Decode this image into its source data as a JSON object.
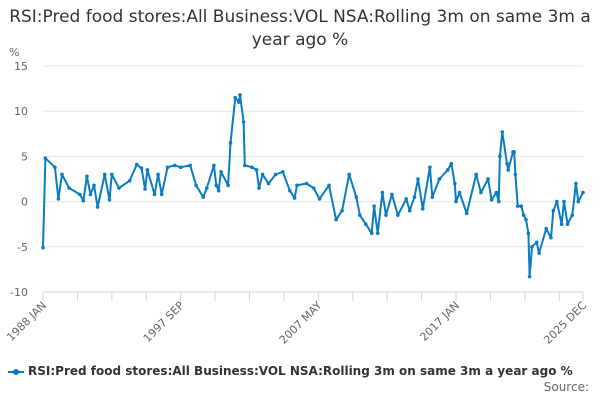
{
  "chart_data": {
    "type": "line",
    "title": "RSI:Pred food stores:All Business:VOL NSA:Rolling 3m on same 3m a year ago %",
    "ylabel": "%",
    "ylim": [
      -10,
      15
    ],
    "yticks": [
      -10,
      -5,
      0,
      5,
      10,
      15
    ],
    "xlim": [
      "1988-01",
      "2025-12"
    ],
    "xtick_labels": [
      "1988 JAN",
      "1997 SEP",
      "2007 MAY",
      "2017 JAN",
      "2025 DEC"
    ],
    "grid": true,
    "legend_position": "bottom",
    "color": "#0a7cc1",
    "series": [
      {
        "name": "RSI:Pred food stores:All Business:VOL NSA:Rolling 3m on same 3m a year ago %",
        "points": [
          [
            "1988-01",
            -5.1
          ],
          [
            "1988-03",
            4.8
          ],
          [
            "1988-11",
            3.8
          ],
          [
            "1989-02",
            0.3
          ],
          [
            "1989-05",
            3.0
          ],
          [
            "1989-11",
            1.5
          ],
          [
            "1990-08",
            0.8
          ],
          [
            "1990-11",
            0.1
          ],
          [
            "1991-02",
            2.8
          ],
          [
            "1991-05",
            0.8
          ],
          [
            "1991-08",
            1.8
          ],
          [
            "1991-11",
            -0.6
          ],
          [
            "1992-05",
            3.0
          ],
          [
            "1992-09",
            0.2
          ],
          [
            "1992-11",
            3.0
          ],
          [
            "1993-05",
            1.5
          ],
          [
            "1994-02",
            2.3
          ],
          [
            "1994-08",
            4.1
          ],
          [
            "1994-12",
            3.7
          ],
          [
            "1995-03",
            1.4
          ],
          [
            "1995-05",
            3.5
          ],
          [
            "1995-11",
            0.8
          ],
          [
            "1996-02",
            3.0
          ],
          [
            "1996-05",
            0.8
          ],
          [
            "1996-10",
            3.8
          ],
          [
            "1997-04",
            4.0
          ],
          [
            "1997-09",
            3.8
          ],
          [
            "1998-05",
            4.0
          ],
          [
            "1998-10",
            1.8
          ],
          [
            "1999-04",
            0.5
          ],
          [
            "1999-07",
            1.5
          ],
          [
            "2000-01",
            4.0
          ],
          [
            "2000-03",
            1.8
          ],
          [
            "2000-05",
            1.2
          ],
          [
            "2000-07",
            3.3
          ],
          [
            "2001-01",
            1.8
          ],
          [
            "2001-03",
            6.5
          ],
          [
            "2001-07",
            11.5
          ],
          [
            "2001-10",
            11.0
          ],
          [
            "2001-11",
            11.8
          ],
          [
            "2002-02",
            8.8
          ],
          [
            "2002-03",
            4.0
          ],
          [
            "2002-09",
            3.8
          ],
          [
            "2003-01",
            3.5
          ],
          [
            "2003-03",
            1.5
          ],
          [
            "2003-06",
            3.0
          ],
          [
            "2003-11",
            2.0
          ],
          [
            "2004-05",
            3.0
          ],
          [
            "2004-11",
            3.3
          ],
          [
            "2005-05",
            1.2
          ],
          [
            "2005-09",
            0.4
          ],
          [
            "2005-11",
            1.8
          ],
          [
            "2006-07",
            2.0
          ],
          [
            "2007-01",
            1.5
          ],
          [
            "2007-06",
            0.3
          ],
          [
            "2008-02",
            1.8
          ],
          [
            "2008-08",
            -2.0
          ],
          [
            "2009-01",
            -1.0
          ],
          [
            "2009-07",
            3.0
          ],
          [
            "2010-01",
            0.5
          ],
          [
            "2010-04",
            -1.5
          ],
          [
            "2010-09",
            -2.5
          ],
          [
            "2011-02",
            -3.5
          ],
          [
            "2011-04",
            -0.5
          ],
          [
            "2011-07",
            -3.5
          ],
          [
            "2011-11",
            1.0
          ],
          [
            "2012-02",
            -1.5
          ],
          [
            "2012-07",
            0.8
          ],
          [
            "2012-12",
            -1.5
          ],
          [
            "2013-07",
            0.3
          ],
          [
            "2013-10",
            -1.0
          ],
          [
            "2014-02",
            0.5
          ],
          [
            "2014-05",
            2.5
          ],
          [
            "2014-09",
            -0.8
          ],
          [
            "2015-03",
            3.8
          ],
          [
            "2015-05",
            0.5
          ],
          [
            "2015-11",
            2.5
          ],
          [
            "2016-06",
            3.5
          ],
          [
            "2016-09",
            4.2
          ],
          [
            "2016-12",
            2.0
          ],
          [
            "2017-01",
            0.0
          ],
          [
            "2017-04",
            1.0
          ],
          [
            "2017-10",
            -1.3
          ],
          [
            "2018-06",
            3.0
          ],
          [
            "2018-10",
            1.0
          ],
          [
            "2019-04",
            2.5
          ],
          [
            "2019-07",
            0.2
          ],
          [
            "2019-11",
            1.0
          ],
          [
            "2020-01",
            0.0
          ],
          [
            "2020-02",
            5.0
          ],
          [
            "2020-04",
            7.7
          ],
          [
            "2020-08",
            4.2
          ],
          [
            "2020-09",
            3.5
          ],
          [
            "2021-01",
            5.5
          ],
          [
            "2021-02",
            5.5
          ],
          [
            "2021-03",
            3.0
          ],
          [
            "2021-05",
            -0.5
          ],
          [
            "2021-08",
            -0.5
          ],
          [
            "2021-10",
            -1.5
          ],
          [
            "2021-12",
            -2.0
          ],
          [
            "2022-02",
            -3.5
          ],
          [
            "2022-03",
            -8.3
          ],
          [
            "2022-05",
            -5.0
          ],
          [
            "2022-09",
            -4.5
          ],
          [
            "2022-11",
            -5.7
          ],
          [
            "2023-05",
            -3.0
          ],
          [
            "2023-09",
            -4.0
          ],
          [
            "2023-11",
            -1.0
          ],
          [
            "2024-02",
            0.0
          ],
          [
            "2024-06",
            -2.5
          ],
          [
            "2024-08",
            0.0
          ],
          [
            "2024-11",
            -2.5
          ],
          [
            "2025-03",
            -1.5
          ],
          [
            "2025-06",
            2.0
          ],
          [
            "2025-08",
            0.0
          ],
          [
            "2025-12",
            1.0
          ]
        ]
      }
    ]
  },
  "source_label": "Source:"
}
